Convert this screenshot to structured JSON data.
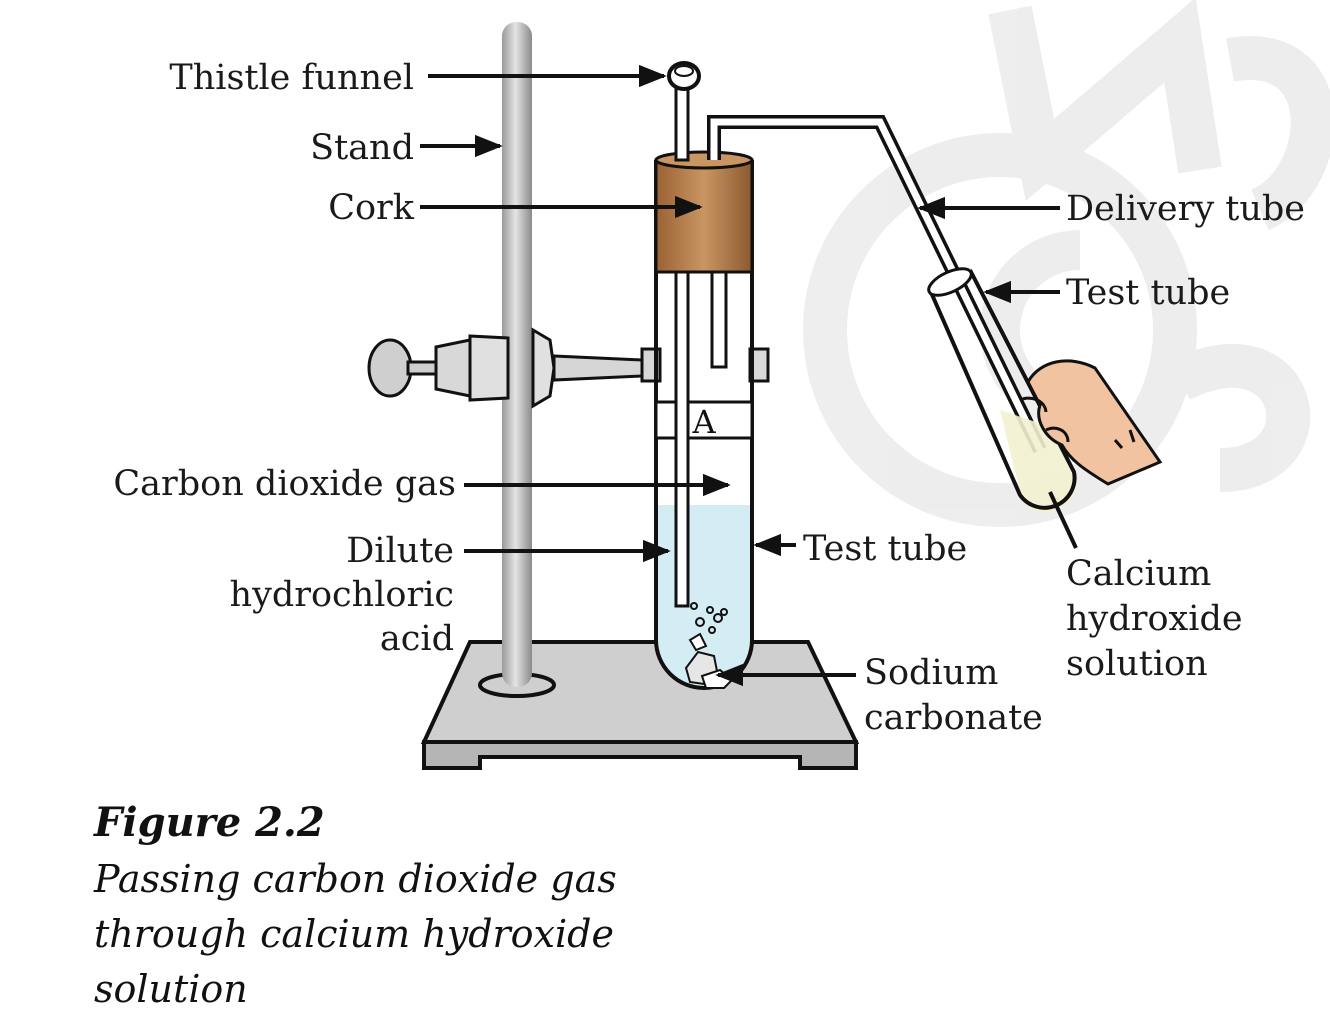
{
  "diagram": {
    "labels": {
      "thistle_funnel": "Thistle funnel",
      "stand": "Stand",
      "cork": "Cork",
      "delivery_tube": "Delivery tube",
      "test_tube_right": "Test tube",
      "carbon_dioxide_gas": "Carbon dioxide gas",
      "dilute_hcl_line1": "Dilute",
      "dilute_hcl_line2": "hydrochloric",
      "dilute_hcl_line3": "acid",
      "test_tube_main": "Test tube",
      "calcium_hydroxide_line1": "Calcium",
      "calcium_hydroxide_line2": "hydroxide",
      "calcium_hydroxide_line3": "solution",
      "sodium_carbonate_line1": "Sodium",
      "sodium_carbonate_line2": "carbonate",
      "tube_letter": "A"
    },
    "colors": {
      "cork": "#b67a45",
      "liquid": "#d4ecf3",
      "stand": "#c9c9c9",
      "base": "#cfcfcf",
      "hand": "#f2c3a0",
      "lime_water": "#f3f1d0",
      "watermark": "#ececec"
    }
  },
  "caption": {
    "title": "Figure 2.2",
    "line1": "Passing carbon dioxide gas",
    "line2": "through calcium hydroxide",
    "line3": "solution"
  }
}
